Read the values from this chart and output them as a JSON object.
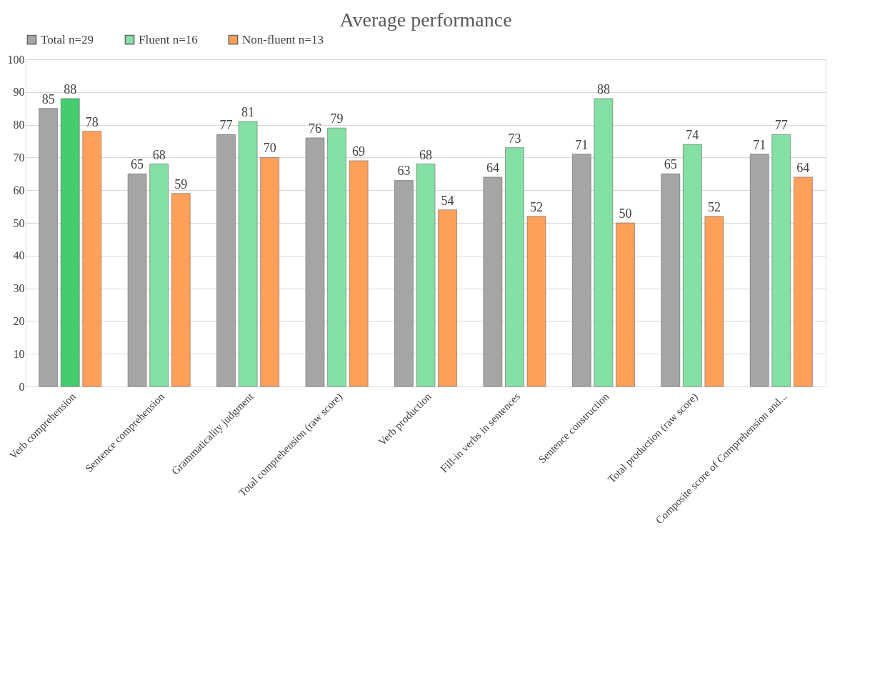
{
  "chart_data": {
    "type": "bar",
    "title": "Average performance",
    "categories": [
      "Verb comprehension",
      "Sentence comprehension",
      "Grammaticality judgment",
      "Total comprehension (raw score)",
      "Verb production",
      "Fill-in verbs in sentences",
      "Sentence construction",
      "Total production (raw score)",
      "Composite score of Comprehension and..."
    ],
    "series": [
      {
        "name": "Total n=29",
        "color": "#a5a5a5",
        "values": [
          85,
          65,
          77,
          76,
          63,
          64,
          71,
          65,
          71
        ]
      },
      {
        "name": "Fluent n=16",
        "color": "#84e0a4",
        "colors": [
          "#44cc6e",
          "#84e0a4",
          "#84e0a4",
          "#84e0a4",
          "#84e0a4",
          "#84e0a4",
          "#84e0a4",
          "#84e0a4",
          "#84e0a4"
        ],
        "values": [
          88,
          68,
          81,
          79,
          68,
          73,
          88,
          74,
          77
        ]
      },
      {
        "name": "Non-fluent n=13",
        "color": "#ffa05a",
        "values": [
          78,
          59,
          70,
          69,
          54,
          52,
          50,
          52,
          64
        ]
      }
    ],
    "ylim": [
      0,
      100
    ],
    "yticks": [
      0,
      10,
      20,
      30,
      40,
      50,
      60,
      70,
      80,
      90,
      100
    ],
    "grid": "y",
    "legend": "top",
    "data_labels": true
  }
}
